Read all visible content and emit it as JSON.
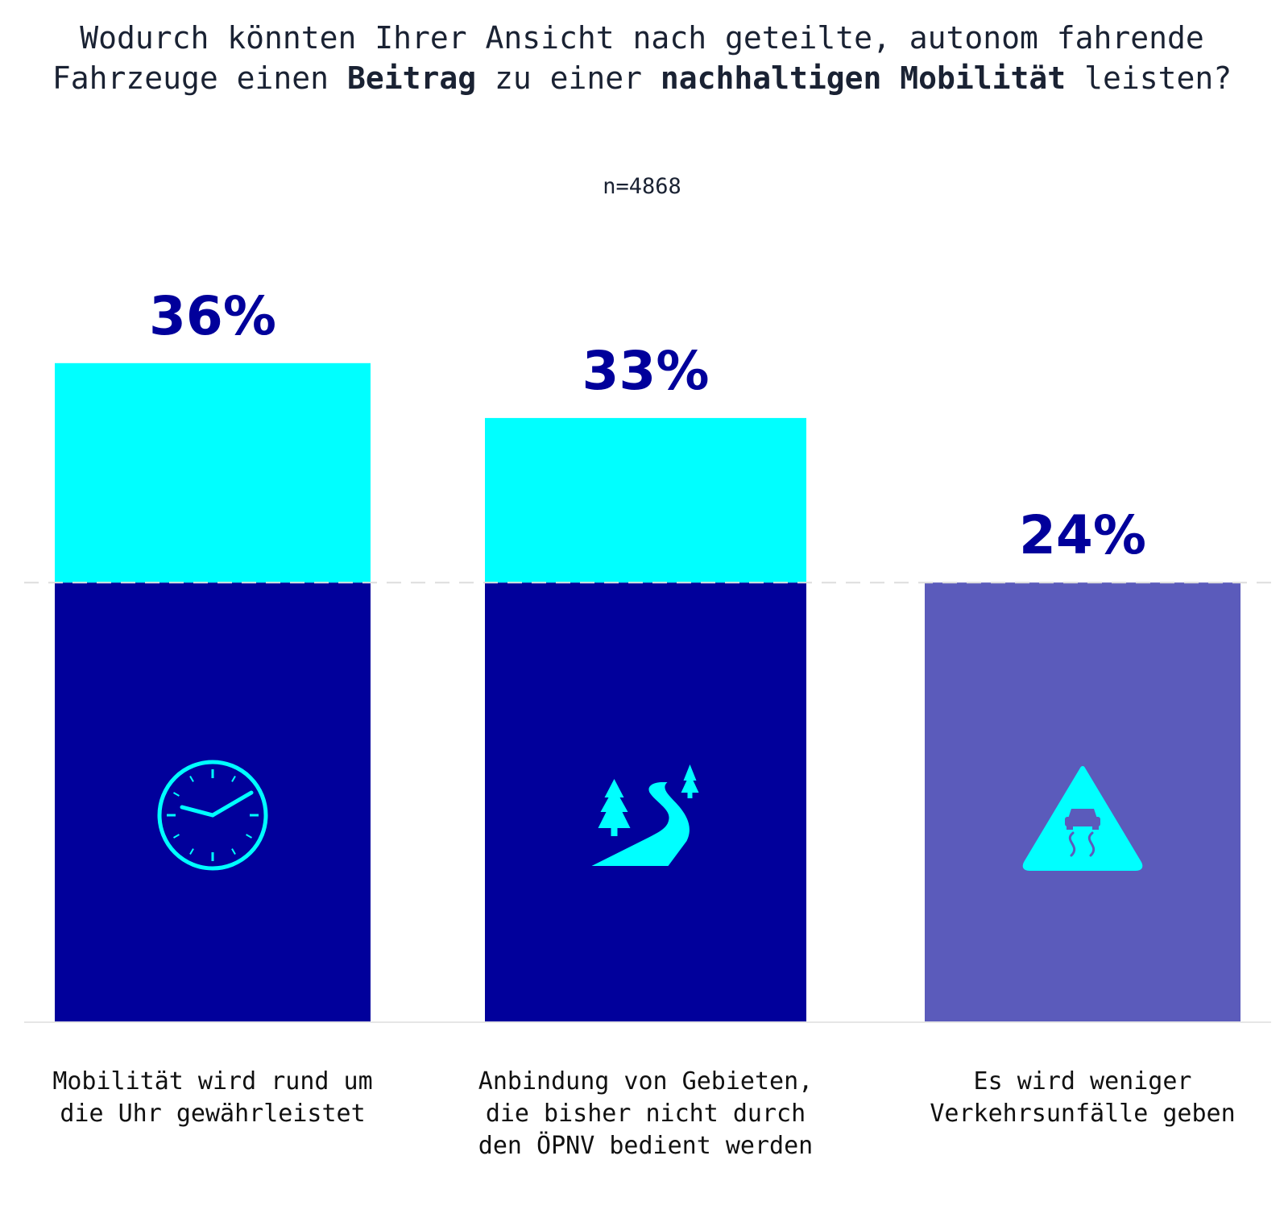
{
  "title_parts": [
    {
      "text": "Wodurch könnten Ihrer Ansicht nach geteilte, autonom fahrende Fahrzeuge einen ",
      "bold": false
    },
    {
      "text": "Beitrag",
      "bold": true
    },
    {
      "text": " zu einer ",
      "bold": false
    },
    {
      "text": "nachhaltigen Mobilität",
      "bold": true
    },
    {
      "text": " leisten?",
      "bold": false
    }
  ],
  "subtitle": "n=4868",
  "colors": {
    "dark_bar": "#01009b",
    "light_bar": "#5b5bbb",
    "overflow": "#00ffff",
    "value_text": "#01009b",
    "icon": "#00ffff",
    "dashed_line": "#dddddd",
    "baseline": "#e6e6e6"
  },
  "chart_data": {
    "type": "bar",
    "title": "Wodurch könnten Ihrer Ansicht nach geteilte, autonom fahrende Fahrzeuge einen Beitrag zu einer nachhaltigen Mobilität leisten?",
    "subtitle": "n=4868",
    "categories": [
      "Mobilität wird rund um die Uhr gewährleistet",
      "Anbindung von Gebieten, die bisher nicht durch den ÖPNV bedient werden",
      "Es wird weniger Verkehrsunfälle geben"
    ],
    "values": [
      36,
      33,
      24
    ],
    "value_labels": [
      "36%",
      "33%",
      "24%"
    ],
    "reference_line": 24,
    "ylim": [
      0,
      36
    ],
    "grid": false,
    "xlabel": "",
    "ylabel": "",
    "icons": [
      "clock-icon",
      "road-trees-icon",
      "slippery-road-warning-icon"
    ]
  },
  "category_label_lines": [
    "Mobilität wird rund um\ndie Uhr gewährleistet",
    "Anbindung von Gebieten,\ndie bisher nicht durch\nden ÖPNV bedient werden",
    "Es wird weniger\nVerkehrsunfälle geben"
  ]
}
